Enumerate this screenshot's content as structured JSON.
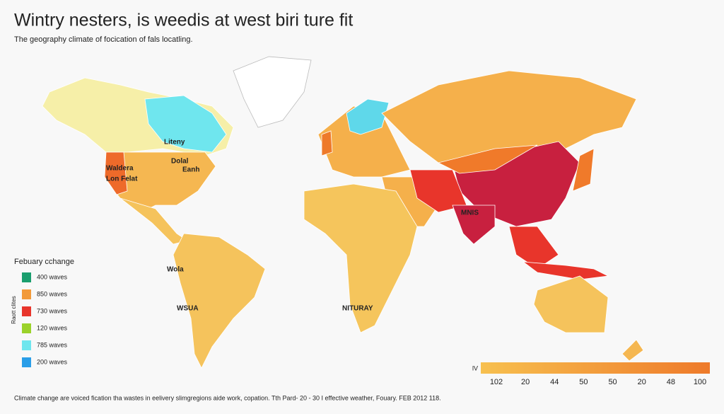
{
  "title": "Wintry nesters, is weedis at west biri ture fit",
  "subtitle": "The geography climate of focication of fals locatling.",
  "map_labels": [
    "Liteny",
    "Dolal",
    "Eanh",
    "Waldera",
    "Lon Felat",
    "MNIS",
    "Wola",
    "WSUA",
    "NITURAY"
  ],
  "legend": {
    "title": "Febuary cchange",
    "side_label": "Raott clites",
    "items": [
      {
        "label": "400 waves",
        "color": "#1a9e6e"
      },
      {
        "label": "850 waves",
        "color": "#f29a3a"
      },
      {
        "label": "730 waves",
        "color": "#e8352b"
      },
      {
        "label": "120 waves",
        "color": "#9bd22a"
      },
      {
        "label": "785 waves",
        "color": "#6fe6ee"
      },
      {
        "label": "200 waves",
        "color": "#2a9ee8"
      }
    ]
  },
  "scale": {
    "start_label": "lV",
    "ticks": [
      "102",
      "20",
      "44",
      "50",
      "50",
      "20",
      "48",
      "100"
    ]
  },
  "footer": "Climate change are voiced fication tha wastes in eelivery slimgregions aide work, copation. Tth Pard- 20 - 30 I effective weather, Fouary. FEB 2012 118."
}
